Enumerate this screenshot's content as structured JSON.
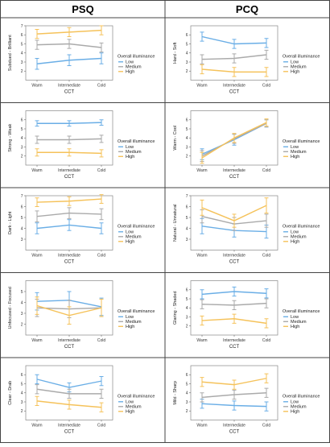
{
  "headers": {
    "left": "PSQ",
    "right": "PCQ"
  },
  "palette": {
    "Low": "#6aaee6",
    "Medium": "#aaaaaa",
    "High": "#f5c25a"
  },
  "chart_data": [
    {
      "type": "line",
      "column": "left",
      "row": 0,
      "xlabel": "CCT",
      "ylabel": "Subdued - Brilliant",
      "categories": [
        "Warm",
        "Intermediate",
        "Cold"
      ],
      "ylim": [
        1,
        7
      ],
      "yticks": [
        2,
        3,
        4,
        5,
        6,
        7
      ],
      "legend_title": "Overall illuminance",
      "legend_labels": [
        "Low",
        "Medium",
        "High"
      ],
      "series": [
        {
          "name": "Low",
          "values": [
            2.8,
            3.2,
            3.4
          ],
          "errors": [
            0.6,
            0.6,
            0.6
          ]
        },
        {
          "name": "Medium",
          "values": [
            4.9,
            5.0,
            4.6
          ],
          "errors": [
            0.5,
            0.5,
            0.5
          ]
        },
        {
          "name": "High",
          "values": [
            6.1,
            6.3,
            6.5
          ],
          "errors": [
            0.5,
            0.5,
            0.5
          ]
        }
      ]
    },
    {
      "type": "line",
      "column": "right",
      "row": 0,
      "xlabel": "CCT",
      "ylabel": "Hard - Soft",
      "categories": [
        "Warm",
        "Intermediate",
        "Cold"
      ],
      "ylim": [
        1,
        7
      ],
      "yticks": [
        2,
        3,
        4,
        5,
        6
      ],
      "legend_title": "Overall illuminance",
      "legend_labels": [
        "Low",
        "Medium",
        "High"
      ],
      "series": [
        {
          "name": "Low",
          "values": [
            5.8,
            5.0,
            5.1
          ],
          "errors": [
            0.5,
            0.5,
            0.5
          ]
        },
        {
          "name": "Medium",
          "values": [
            3.3,
            3.4,
            3.8
          ],
          "errors": [
            0.5,
            0.5,
            0.5
          ]
        },
        {
          "name": "High",
          "values": [
            2.2,
            1.9,
            1.9
          ],
          "errors": [
            0.5,
            0.5,
            0.5
          ]
        }
      ]
    },
    {
      "type": "line",
      "column": "left",
      "row": 1,
      "xlabel": "CCT",
      "ylabel": "Strong - Weak",
      "categories": [
        "Warm",
        "Intermediate",
        "Cold"
      ],
      "ylim": [
        1,
        7
      ],
      "yticks": [
        2,
        3,
        4,
        5,
        6
      ],
      "legend_title": "Overall illuminance",
      "legend_labels": [
        "Low",
        "Medium",
        "High"
      ],
      "series": [
        {
          "name": "Low",
          "values": [
            5.6,
            5.6,
            5.7
          ],
          "errors": [
            0.3,
            0.3,
            0.3
          ]
        },
        {
          "name": "Medium",
          "values": [
            3.8,
            3.8,
            3.9
          ],
          "errors": [
            0.4,
            0.4,
            0.4
          ]
        },
        {
          "name": "High",
          "values": [
            2.4,
            2.4,
            2.3
          ],
          "errors": [
            0.4,
            0.4,
            0.4
          ]
        }
      ]
    },
    {
      "type": "line",
      "column": "right",
      "row": 1,
      "xlabel": "CCT",
      "ylabel": "Warm - Cool",
      "categories": [
        "Warm",
        "Intermediate",
        "Cold"
      ],
      "ylim": [
        1,
        7
      ],
      "yticks": [
        2,
        3,
        4,
        5,
        6
      ],
      "legend_title": "Overall illuminance",
      "legend_labels": [
        "Low",
        "Medium",
        "High"
      ],
      "series": [
        {
          "name": "Low",
          "values": [
            2.2,
            3.8,
            5.6
          ],
          "errors": [
            0.6,
            0.6,
            0.4
          ]
        },
        {
          "name": "Medium",
          "values": [
            2.0,
            3.9,
            5.6
          ],
          "errors": [
            0.6,
            0.5,
            0.4
          ]
        },
        {
          "name": "High",
          "values": [
            1.8,
            4.0,
            5.7
          ],
          "errors": [
            0.6,
            0.5,
            0.4
          ]
        }
      ]
    },
    {
      "type": "line",
      "column": "left",
      "row": 2,
      "xlabel": "CCT",
      "ylabel": "Dark - Light",
      "categories": [
        "Warm",
        "Intermediate",
        "Cold"
      ],
      "ylim": [
        2,
        7
      ],
      "yticks": [
        3,
        4,
        5,
        6,
        7
      ],
      "legend_title": "Overall illuminance",
      "legend_labels": [
        "Low",
        "Medium",
        "High"
      ],
      "series": [
        {
          "name": "Low",
          "values": [
            4.0,
            4.3,
            4.0
          ],
          "errors": [
            0.5,
            0.5,
            0.5
          ]
        },
        {
          "name": "Medium",
          "values": [
            5.1,
            5.4,
            5.3
          ],
          "errors": [
            0.5,
            0.5,
            0.5
          ]
        },
        {
          "name": "High",
          "values": [
            6.4,
            6.5,
            6.7
          ],
          "errors": [
            0.4,
            0.4,
            0.4
          ]
        }
      ]
    },
    {
      "type": "line",
      "column": "right",
      "row": 2,
      "xlabel": "CCT",
      "ylabel": "Natural - Unnatural",
      "categories": [
        "Warm",
        "Intermediate",
        "Cold"
      ],
      "ylim": [
        2,
        7
      ],
      "yticks": [
        3,
        4,
        5,
        6,
        7
      ],
      "legend_title": "Overall illuminance",
      "legend_labels": [
        "Low",
        "Medium",
        "High"
      ],
      "series": [
        {
          "name": "Low",
          "values": [
            4.2,
            3.8,
            3.7
          ],
          "errors": [
            0.7,
            0.6,
            0.6
          ]
        },
        {
          "name": "Medium",
          "values": [
            5.1,
            4.4,
            4.7
          ],
          "errors": [
            0.6,
            0.6,
            0.6
          ]
        },
        {
          "name": "High",
          "values": [
            5.9,
            4.7,
            6.1
          ],
          "errors": [
            0.7,
            0.6,
            0.7
          ]
        }
      ]
    },
    {
      "type": "line",
      "column": "left",
      "row": 3,
      "xlabel": "CCT",
      "ylabel": "Unfocused - Focused",
      "categories": [
        "Warm",
        "Intermediate",
        "Cold"
      ],
      "ylim": [
        1,
        6
      ],
      "yticks": [
        2,
        3,
        4,
        5
      ],
      "legend_title": "Overall illuminance",
      "legend_labels": [
        "Low",
        "Medium",
        "High"
      ],
      "series": [
        {
          "name": "Low",
          "values": [
            4.1,
            4.2,
            3.6
          ],
          "errors": [
            0.8,
            0.8,
            0.8
          ]
        },
        {
          "name": "Medium",
          "values": [
            3.5,
            3.4,
            3.5
          ],
          "errors": [
            0.8,
            0.8,
            0.8
          ]
        },
        {
          "name": "High",
          "values": [
            3.7,
            2.8,
            3.5
          ],
          "errors": [
            0.8,
            0.8,
            0.8
          ]
        }
      ]
    },
    {
      "type": "line",
      "column": "right",
      "row": 3,
      "xlabel": "CCT",
      "ylabel": "Glaring - Shaded",
      "categories": [
        "Warm",
        "Intermediate",
        "Cold"
      ],
      "ylim": [
        1,
        7
      ],
      "yticks": [
        2,
        3,
        4,
        5,
        6
      ],
      "legend_title": "Overall illuminance",
      "legend_labels": [
        "Low",
        "Medium",
        "High"
      ],
      "series": [
        {
          "name": "Low",
          "values": [
            5.5,
            5.8,
            5.6
          ],
          "errors": [
            0.5,
            0.5,
            0.5
          ]
        },
        {
          "name": "Medium",
          "values": [
            4.4,
            4.3,
            4.5
          ],
          "errors": [
            0.5,
            0.5,
            0.5
          ]
        },
        {
          "name": "High",
          "values": [
            2.6,
            2.8,
            2.3
          ],
          "errors": [
            0.5,
            0.5,
            0.5
          ]
        }
      ]
    },
    {
      "type": "line",
      "column": "left",
      "row": 4,
      "xlabel": "CCT",
      "ylabel": "Clear - Drab",
      "categories": [
        "Warm",
        "Intermediate",
        "Cold"
      ],
      "ylim": [
        1,
        7
      ],
      "yticks": [
        2,
        3,
        4,
        5,
        6
      ],
      "legend_title": "Overall illuminance",
      "legend_labels": [
        "Low",
        "Medium",
        "High"
      ],
      "series": [
        {
          "name": "Low",
          "values": [
            5.5,
            4.6,
            5.3
          ],
          "errors": [
            0.5,
            0.5,
            0.5
          ]
        },
        {
          "name": "Medium",
          "values": [
            4.4,
            3.9,
            3.9
          ],
          "errors": [
            0.5,
            0.5,
            0.5
          ]
        },
        {
          "name": "High",
          "values": [
            3.1,
            2.7,
            2.4
          ],
          "errors": [
            0.5,
            0.5,
            0.5
          ]
        }
      ]
    },
    {
      "type": "line",
      "column": "right",
      "row": 4,
      "xlabel": "CCT",
      "ylabel": "Mild - Sharp",
      "categories": [
        "Warm",
        "Intermediate",
        "Cold"
      ],
      "ylim": [
        1,
        7
      ],
      "yticks": [
        2,
        3,
        4,
        5,
        6
      ],
      "legend_title": "Overall illuminance",
      "legend_labels": [
        "Low",
        "Medium",
        "High"
      ],
      "series": [
        {
          "name": "Low",
          "values": [
            2.8,
            2.6,
            2.5
          ],
          "errors": [
            0.5,
            0.5,
            0.5
          ]
        },
        {
          "name": "Medium",
          "values": [
            3.5,
            3.8,
            4.0
          ],
          "errors": [
            0.5,
            0.5,
            0.5
          ]
        },
        {
          "name": "High",
          "values": [
            5.2,
            4.9,
            5.6
          ],
          "errors": [
            0.5,
            0.5,
            0.5
          ]
        }
      ]
    }
  ]
}
